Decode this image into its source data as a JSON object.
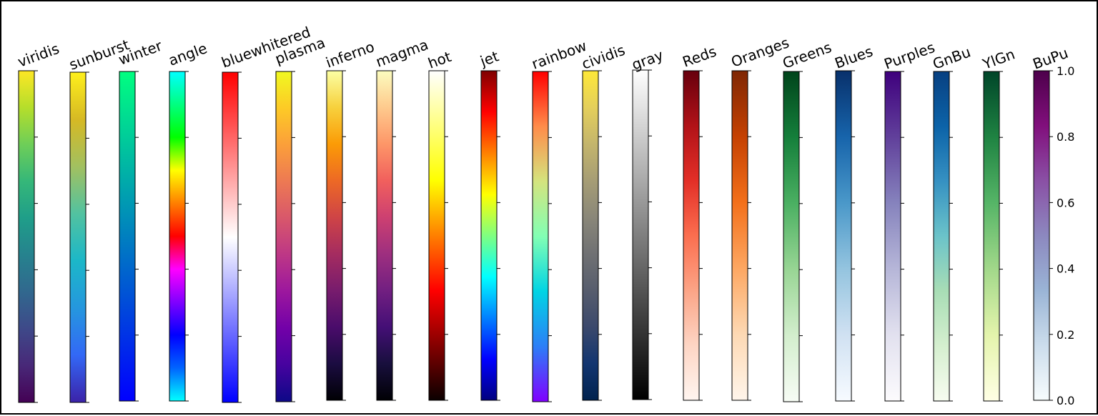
{
  "chart_data": {
    "type": "heatmap",
    "title": "",
    "ylim": [
      0,
      1
    ],
    "ticks": [
      {
        "value": 0.0,
        "label": "0.0"
      },
      {
        "value": 0.2,
        "label": "0.2"
      },
      {
        "value": 0.4,
        "label": "0.4"
      },
      {
        "value": 0.6,
        "label": "0.6"
      },
      {
        "value": 0.8,
        "label": "0.8"
      },
      {
        "value": 1.0,
        "label": "1.0"
      }
    ],
    "colormaps": [
      {
        "name": "viridis",
        "stops": [
          "#440154",
          "#482878",
          "#3e4989",
          "#31688e",
          "#26828e",
          "#1f9e89",
          "#35b779",
          "#6ece58",
          "#b5de2b",
          "#fde725"
        ]
      },
      {
        "name": "sunburst",
        "stops": [
          "#3b22a8",
          "#3368f6",
          "#2597de",
          "#1cb7c8",
          "#52c2a0",
          "#a2c060",
          "#d6b924",
          "#fff01c"
        ]
      },
      {
        "name": "winter",
        "stops": [
          "#0000ff",
          "#00ff80"
        ]
      },
      {
        "name": "angle",
        "stops": [
          "#00ffff",
          "#0064ff",
          "#0000ff",
          "#8000ff",
          "#ff00ff",
          "#ff0000",
          "#ff7f00",
          "#ffff00",
          "#00ff00",
          "#00ff80",
          "#00ffff"
        ]
      },
      {
        "name": "bluewhitered",
        "stops": [
          "#0000ff",
          "#ffffff",
          "#ff0000"
        ]
      },
      {
        "name": "plasma",
        "stops": [
          "#0d0887",
          "#46039f",
          "#7201a8",
          "#9c179e",
          "#bd3786",
          "#d8576b",
          "#ed7953",
          "#fb9f3a",
          "#fdca26",
          "#f0f921"
        ]
      },
      {
        "name": "inferno",
        "stops": [
          "#000004",
          "#1b0c41",
          "#4a0c6b",
          "#781c6d",
          "#a52c60",
          "#cf4446",
          "#ed6925",
          "#fb9b06",
          "#f7d13d",
          "#fcffa4"
        ]
      },
      {
        "name": "magma",
        "stops": [
          "#000004",
          "#180f3d",
          "#440f76",
          "#721f81",
          "#9e2f7f",
          "#cd4071",
          "#f1605d",
          "#fd9668",
          "#feca8d",
          "#fcfdbf"
        ]
      },
      {
        "name": "hot",
        "stops": [
          "#0b0000",
          "#ff0000",
          "#ffff00",
          "#ffffff"
        ]
      },
      {
        "name": "jet",
        "stops": [
          "#00007f",
          "#0000ff",
          "#0080ff",
          "#00ffff",
          "#80ff80",
          "#ffff00",
          "#ff8000",
          "#ff0000",
          "#7f0000"
        ]
      },
      {
        "name": "rainbow",
        "stops": [
          "#8000ff",
          "#2c7ef7",
          "#00d4e4",
          "#82ffb4",
          "#d4e47e",
          "#ff8c4a",
          "#ff0000"
        ]
      },
      {
        "name": "cividis",
        "stops": [
          "#00224e",
          "#123570",
          "#3b496c",
          "#575d6d",
          "#707173",
          "#8a8779",
          "#a69d75",
          "#c4b56c",
          "#e4cf5b",
          "#fee838"
        ]
      },
      {
        "name": "gray",
        "stops": [
          "#000000",
          "#ffffff"
        ]
      },
      {
        "name": "Reds",
        "stops": [
          "#fff5f0",
          "#fdd5c4",
          "#fca486",
          "#fb6e4f",
          "#e32f27",
          "#b11218",
          "#67000d"
        ]
      },
      {
        "name": "Oranges",
        "stops": [
          "#fff5eb",
          "#fdd9b4",
          "#fda762",
          "#f3701b",
          "#c54102",
          "#7f2704"
        ]
      },
      {
        "name": "Greens",
        "stops": [
          "#f7fcf5",
          "#d3eecd",
          "#98d594",
          "#4bb062",
          "#157f3b",
          "#00441b"
        ]
      },
      {
        "name": "Blues",
        "stops": [
          "#f7fbff",
          "#d0e1f2",
          "#94c4df",
          "#4a98c9",
          "#1764ab",
          "#08306b"
        ]
      },
      {
        "name": "Purples",
        "stops": [
          "#fcfbfd",
          "#e2e1ef",
          "#b6b6d8",
          "#8683bd",
          "#61409b",
          "#3f007d"
        ]
      },
      {
        "name": "GnBu",
        "stops": [
          "#f7fcf0",
          "#d5efcf",
          "#a8ddb5",
          "#6bc3c9",
          "#3691c2",
          "#0c63a8",
          "#084081"
        ]
      },
      {
        "name": "YlGn",
        "stops": [
          "#ffffe5",
          "#e4f4ac",
          "#a2d88a",
          "#56b567",
          "#1f8342",
          "#004529"
        ]
      },
      {
        "name": "BuPu",
        "stops": [
          "#f7fcfd",
          "#ccddec",
          "#9ab4d6",
          "#8c88bf",
          "#8a50a5",
          "#810f7c",
          "#4d004b"
        ]
      }
    ]
  }
}
